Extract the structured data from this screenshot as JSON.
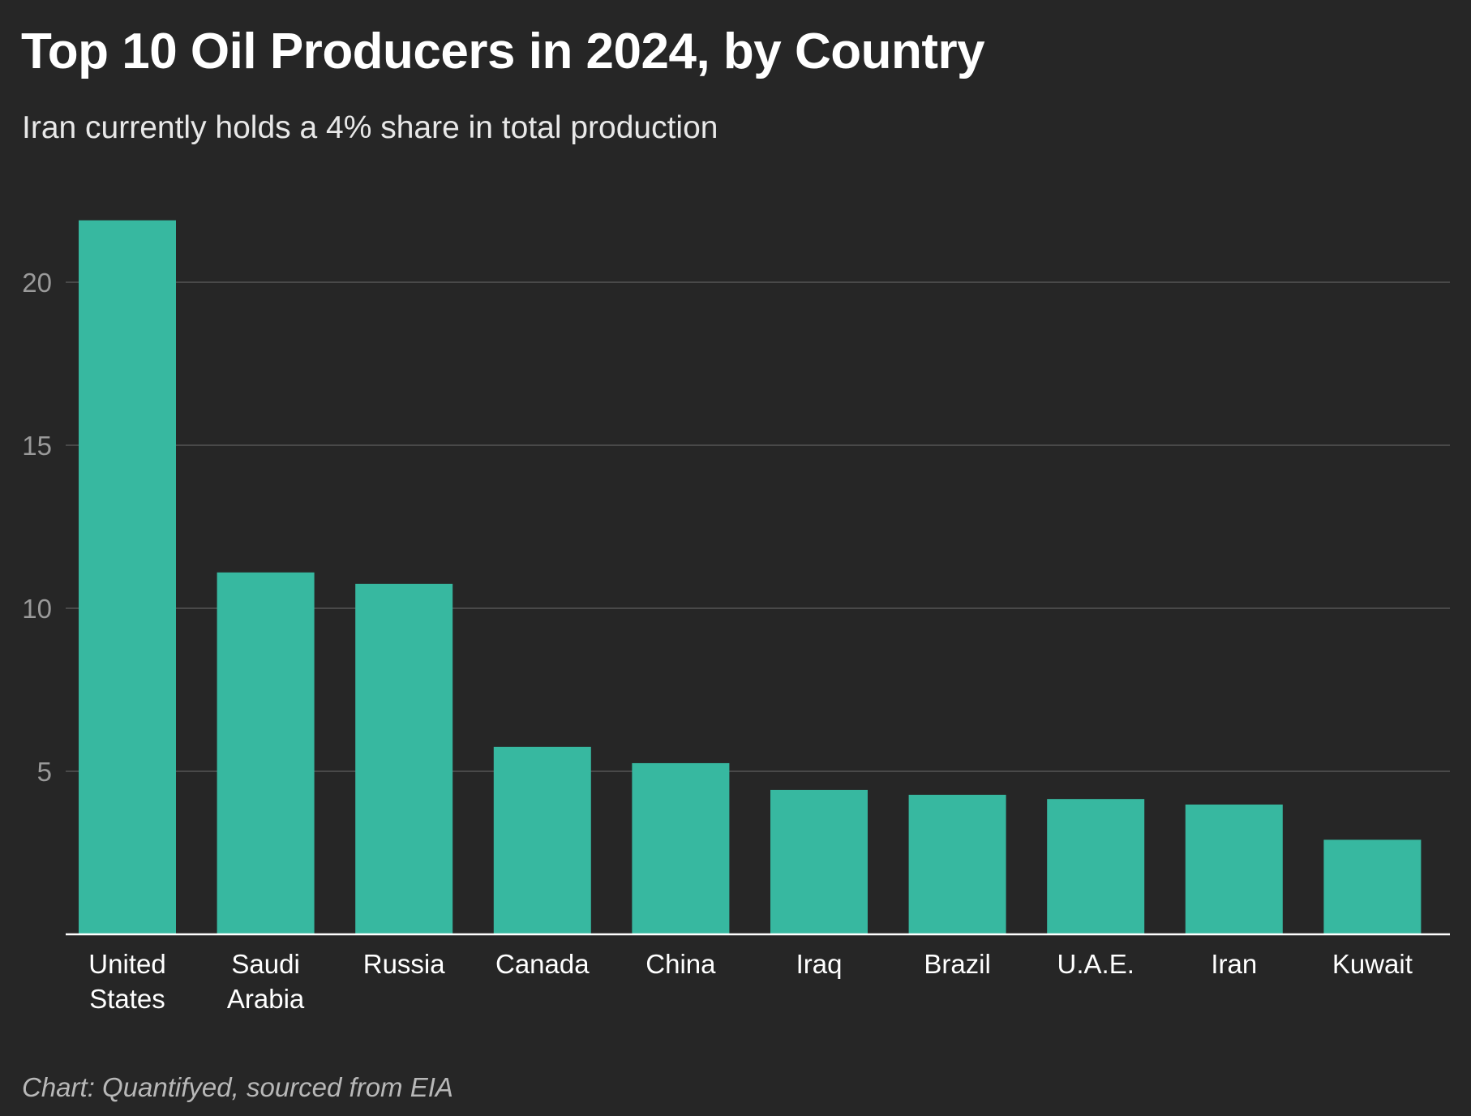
{
  "header": {
    "title": "Top 10 Oil Producers in 2024, by Country",
    "subtitle": "Iran currently holds a 4% share in total production"
  },
  "footer": {
    "source": "Chart: Quantifyed, sourced from EIA"
  },
  "colors": {
    "background": "#262626",
    "bar": "#37b8a0",
    "grid": "#555555",
    "baseline": "#ffffff"
  },
  "chart_data": {
    "type": "bar",
    "title": "Top 10 Oil Producers in 2024, by Country",
    "subtitle": "Iran currently holds a 4% share in total production",
    "categories": [
      [
        "United",
        "States"
      ],
      [
        "Saudi",
        "Arabia"
      ],
      [
        "Russia"
      ],
      [
        "Canada"
      ],
      [
        "China"
      ],
      [
        "Iraq"
      ],
      [
        "Brazil"
      ],
      [
        "U.A.E."
      ],
      [
        "Iran"
      ],
      [
        "Kuwait"
      ]
    ],
    "values": [
      21.9,
      11.1,
      10.75,
      5.75,
      5.25,
      4.43,
      4.28,
      4.15,
      3.98,
      2.9
    ],
    "y_ticks": [
      5,
      10,
      15,
      20
    ],
    "ylim": [
      0,
      22
    ],
    "xlabel": "",
    "ylabel": "",
    "grid": true,
    "legend": "none"
  }
}
